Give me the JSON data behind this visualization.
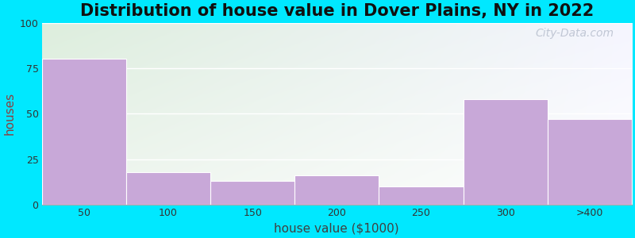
{
  "title": "Distribution of house value in Dover Plains, NY in 2022",
  "xlabel": "house value ($1000)",
  "ylabel": "houses",
  "categories": [
    "50",
    "100",
    "150",
    "200",
    "250",
    "300",
    ">400"
  ],
  "values": [
    80,
    18,
    13,
    16,
    10,
    58,
    47
  ],
  "bar_color": "#c8a8d8",
  "bar_edgecolor": "#c8a8d8",
  "ylim": [
    0,
    100
  ],
  "yticks": [
    0,
    25,
    50,
    75,
    100
  ],
  "background_outer": "#00e8ff",
  "bg_color_topleft": "#ddeedd",
  "bg_color_topright": "#f0f0ff",
  "bg_color_bottomright": "#ffffff",
  "grid_color": "#ffffff",
  "title_fontsize": 15,
  "axis_label_fontsize": 11,
  "tick_fontsize": 9,
  "watermark_text": "City-Data.com",
  "ylabel_color": "#8b4040",
  "xlabel_color": "#404040",
  "title_color": "#101010"
}
